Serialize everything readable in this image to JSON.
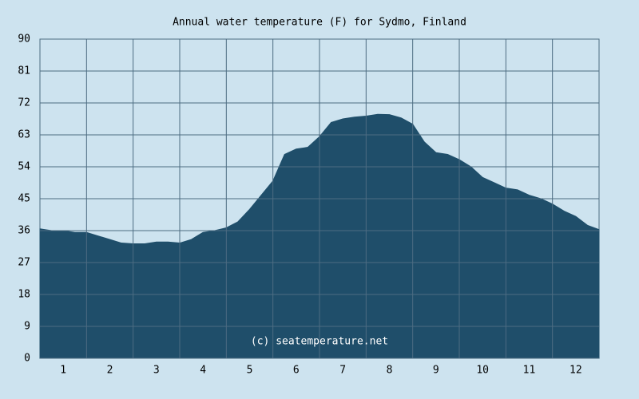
{
  "chart_data": {
    "type": "area",
    "title": "Annual water temperature (F) for Sydmo, Finland",
    "annotation": "(c) seatemperature.net",
    "x": [
      0.5,
      0.75,
      1,
      1.25,
      1.5,
      1.75,
      2,
      2.25,
      2.5,
      2.75,
      3,
      3.25,
      3.5,
      3.75,
      4,
      4.25,
      4.5,
      4.75,
      5,
      5.25,
      5.5,
      5.75,
      6,
      6.25,
      6.5,
      6.75,
      7,
      7.25,
      7.5,
      7.75,
      8,
      8.25,
      8.5,
      8.75,
      9,
      9.25,
      9.5,
      9.75,
      10,
      10.25,
      10.5,
      10.75,
      11,
      11.25,
      11.5,
      11.75,
      12,
      12.25,
      12.5
    ],
    "values": [
      36.5,
      36,
      36,
      35.5,
      35.5,
      34.5,
      33.5,
      32.5,
      32.3,
      32.3,
      32.8,
      32.8,
      32.5,
      33.5,
      35.5,
      36,
      36.8,
      38.5,
      42,
      46,
      50,
      57.5,
      59,
      59.5,
      62.5,
      66.5,
      67.5,
      68,
      68.3,
      68.8,
      68.7,
      67.8,
      66,
      61,
      58,
      57.5,
      56,
      54,
      51,
      49.5,
      48,
      47.5,
      46,
      45,
      43.5,
      41.5,
      40,
      37.5,
      36.3
    ],
    "color": "#1f4e6a",
    "xlim": [
      0.5,
      12.5
    ],
    "xticks": [
      1,
      2,
      3,
      4,
      5,
      6,
      7,
      8,
      9,
      10,
      11,
      12
    ],
    "ylim": [
      0,
      90
    ],
    "yticks": [
      0,
      9,
      18,
      27,
      36,
      45,
      54,
      63,
      72,
      81,
      90
    ],
    "grid": true
  }
}
